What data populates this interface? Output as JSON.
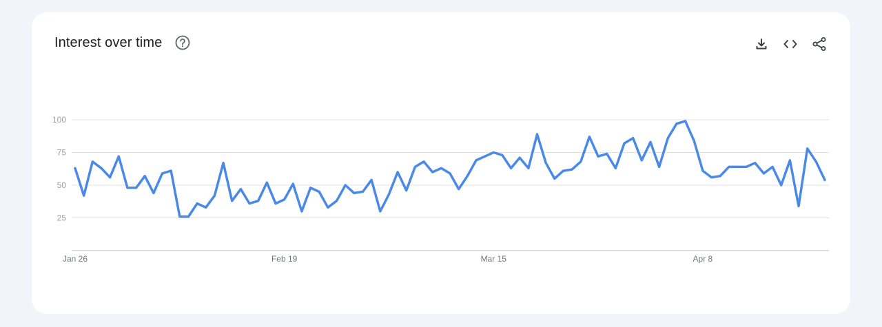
{
  "card": {
    "title": "Interest over time",
    "icons": [
      "help-icon",
      "download-icon",
      "embed-code-icon",
      "share-icon"
    ]
  },
  "colors": {
    "line": "#4a89e6",
    "grid": "#e0e0e0",
    "axis": "#bdbdbd"
  },
  "chart_data": {
    "type": "line",
    "title": "Interest over time",
    "xlabel": "",
    "ylabel": "",
    "ylim": [
      0,
      100
    ],
    "yticks": [
      25,
      50,
      75,
      100
    ],
    "xtick_labels": [
      "Jan 26",
      "Feb 19",
      "Mar 15",
      "Apr 8"
    ],
    "xtick_index": [
      0,
      24,
      48,
      72
    ],
    "grid": true,
    "series": [
      {
        "name": "",
        "values": [
          63,
          42,
          68,
          63,
          56,
          72,
          48,
          48,
          57,
          44,
          59,
          61,
          26,
          26,
          36,
          33,
          42,
          67,
          38,
          47,
          36,
          38,
          52,
          36,
          39,
          51,
          30,
          48,
          45,
          33,
          38,
          50,
          44,
          45,
          54,
          30,
          43,
          60,
          46,
          64,
          68,
          60,
          63,
          59,
          47,
          57,
          69,
          72,
          75,
          73,
          63,
          71,
          63,
          89,
          67,
          55,
          61,
          62,
          68,
          87,
          72,
          74,
          63,
          82,
          86,
          69,
          83,
          64,
          86,
          97,
          99,
          84,
          61,
          56,
          57,
          64,
          64,
          64,
          67,
          59,
          64,
          50,
          69,
          34,
          78,
          68,
          54
        ]
      }
    ]
  }
}
